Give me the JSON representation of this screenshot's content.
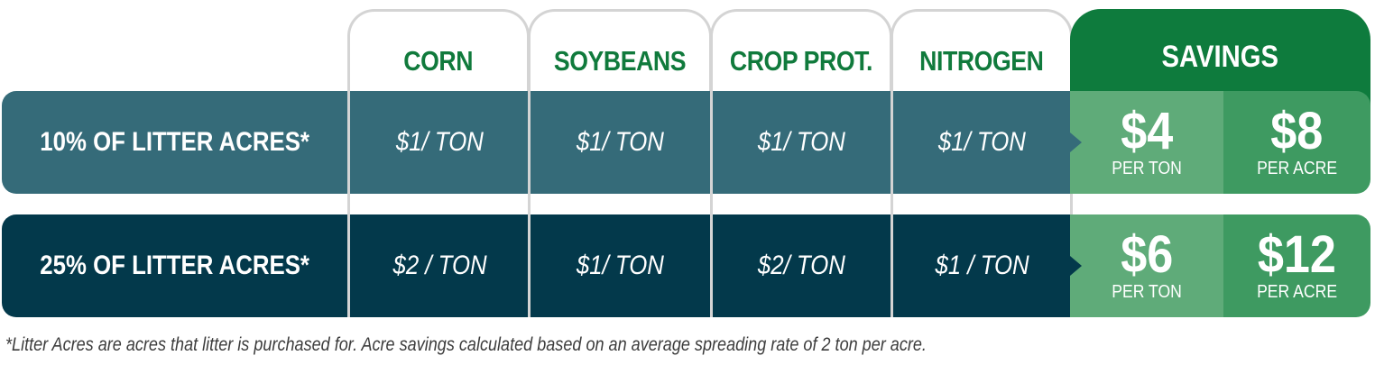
{
  "columns": {
    "corn": "CORN",
    "soybeans": "SOYBEANS",
    "crop_prot": "CROP PROT.",
    "nitrogen": "NITROGEN",
    "savings": "SAVINGS"
  },
  "rows": [
    {
      "label": "10% OF LITTER ACRES*",
      "corn": "$1/ TON",
      "soybeans": "$1/ TON",
      "crop_prot": "$1/ TON",
      "nitrogen": "$1/ TON",
      "savings_ton": "$4",
      "savings_ton_unit": "PER TON",
      "savings_acre": "$8",
      "savings_acre_unit": "PER ACRE"
    },
    {
      "label": "25% OF LITTER ACRES*",
      "corn": "$2 / TON",
      "soybeans": "$1/ TON",
      "crop_prot": "$2/ TON",
      "nitrogen": "$1 / TON",
      "savings_ton": "$6",
      "savings_ton_unit": "PER TON",
      "savings_acre": "$12",
      "savings_acre_unit": "PER ACRE"
    }
  ],
  "footnote": "*Litter Acres are acres that litter is purchased for. Acre savings calculated based on an average spreading rate of 2 ton per acre.",
  "colors": {
    "header_green": "#107a3c",
    "savings_green": "#0e7b3d",
    "row1_teal": "#356b79",
    "row2_navy": "#03394b",
    "savings_light": "#5fab79",
    "savings_dark": "#3e9a61"
  }
}
